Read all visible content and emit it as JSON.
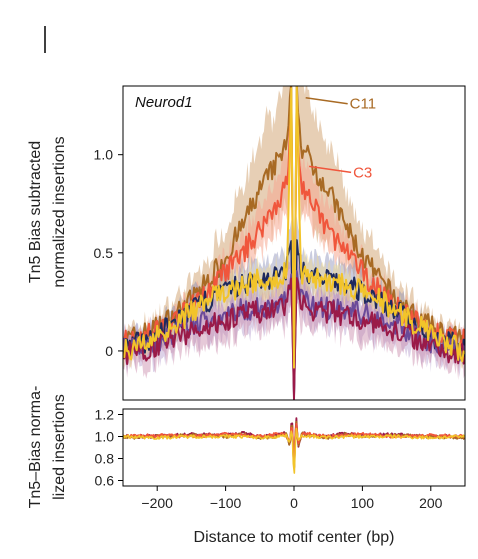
{
  "chart_data": [
    {
      "type": "line",
      "title": "Neurod1",
      "ylabel_line1": "Tn5 Bias subtracted",
      "ylabel_line2": "normalized insertions",
      "xlim": [
        -250,
        250
      ],
      "ylim": [
        -0.25,
        1.35
      ],
      "yticks": [
        0,
        0.5,
        1.0
      ],
      "ytick_labels": [
        "0",
        "0.5",
        "1.0"
      ],
      "annotations": [
        {
          "text": "C11",
          "x": 20,
          "y": 1.27,
          "color": "#a86a24"
        },
        {
          "text": "C3",
          "x": 25,
          "y": 0.92,
          "color": "#f0563c"
        }
      ],
      "series": [
        {
          "name": "C11",
          "color": "#a86a24",
          "band_color": "#d4a878",
          "x": [
            -250,
            -225,
            -200,
            -175,
            -150,
            -125,
            -100,
            -75,
            -50,
            -25,
            -10,
            -4,
            0,
            4,
            10,
            25,
            50,
            75,
            100,
            125,
            150,
            175,
            200,
            225,
            250
          ],
          "y": [
            0.05,
            0.08,
            0.12,
            0.18,
            0.26,
            0.36,
            0.48,
            0.64,
            0.82,
            0.96,
            1.05,
            1.35,
            -0.05,
            1.35,
            1.05,
            0.96,
            0.82,
            0.64,
            0.48,
            0.36,
            0.26,
            0.18,
            0.12,
            0.08,
            0.05
          ],
          "band": [
            0.04,
            0.05,
            0.06,
            0.08,
            0.1,
            0.12,
            0.15,
            0.2,
            0.25,
            0.3,
            0.34,
            0.3,
            0.1,
            0.3,
            0.34,
            0.3,
            0.25,
            0.2,
            0.15,
            0.12,
            0.1,
            0.08,
            0.06,
            0.05,
            0.04
          ]
        },
        {
          "name": "C3",
          "color": "#f0563c",
          "band_color": "#f5a890",
          "x": [
            -250,
            -225,
            -200,
            -175,
            -150,
            -125,
            -100,
            -75,
            -50,
            -25,
            -10,
            -4,
            0,
            4,
            10,
            25,
            50,
            75,
            100,
            125,
            150,
            175,
            200,
            225,
            250
          ],
          "y": [
            0.05,
            0.07,
            0.1,
            0.15,
            0.22,
            0.3,
            0.4,
            0.5,
            0.62,
            0.75,
            0.86,
            1.2,
            -0.05,
            1.2,
            0.86,
            0.75,
            0.62,
            0.5,
            0.4,
            0.3,
            0.22,
            0.15,
            0.1,
            0.07,
            0.05
          ],
          "band": [
            0.03,
            0.03,
            0.04,
            0.05,
            0.06,
            0.07,
            0.08,
            0.1,
            0.12,
            0.14,
            0.16,
            0.15,
            0.08,
            0.15,
            0.16,
            0.14,
            0.12,
            0.1,
            0.08,
            0.07,
            0.06,
            0.05,
            0.04,
            0.03,
            0.03
          ]
        },
        {
          "color": "#1e2a5e",
          "band_color": "#8a8fb8",
          "x": [
            -250,
            -225,
            -200,
            -175,
            -150,
            -125,
            -100,
            -75,
            -50,
            -25,
            -10,
            -4,
            0,
            4,
            10,
            25,
            50,
            75,
            100,
            125,
            150,
            175,
            200,
            225,
            250
          ],
          "y": [
            0.02,
            0.04,
            0.08,
            0.14,
            0.2,
            0.26,
            0.3,
            0.34,
            0.36,
            0.38,
            0.42,
            0.55,
            -0.2,
            0.55,
            0.42,
            0.38,
            0.36,
            0.34,
            0.3,
            0.26,
            0.2,
            0.14,
            0.08,
            0.04,
            0.02
          ],
          "band": [
            0.05,
            0.05,
            0.06,
            0.07,
            0.08,
            0.08,
            0.09,
            0.1,
            0.1,
            0.1,
            0.12,
            0.12,
            0.06,
            0.12,
            0.12,
            0.1,
            0.1,
            0.1,
            0.09,
            0.08,
            0.08,
            0.07,
            0.06,
            0.05,
            0.05
          ]
        },
        {
          "color": "#6a4a9a",
          "band_color": "#b49ccc",
          "x": [
            -250,
            -225,
            -200,
            -175,
            -150,
            -125,
            -100,
            -75,
            -50,
            -25,
            -10,
            -4,
            0,
            4,
            10,
            25,
            50,
            75,
            100,
            125,
            150,
            175,
            200,
            225,
            250
          ],
          "y": [
            0.0,
            0.02,
            0.05,
            0.09,
            0.13,
            0.16,
            0.19,
            0.21,
            0.22,
            0.23,
            0.26,
            0.4,
            -0.22,
            0.4,
            0.26,
            0.23,
            0.22,
            0.21,
            0.19,
            0.16,
            0.13,
            0.09,
            0.05,
            0.02,
            0.0
          ],
          "band": [
            0.08,
            0.08,
            0.09,
            0.09,
            0.1,
            0.1,
            0.1,
            0.1,
            0.1,
            0.1,
            0.12,
            0.12,
            0.06,
            0.12,
            0.12,
            0.1,
            0.1,
            0.1,
            0.1,
            0.1,
            0.1,
            0.09,
            0.09,
            0.08,
            0.08
          ]
        },
        {
          "color": "#9a1a48",
          "band_color": "#c888a8",
          "x": [
            -250,
            -225,
            -200,
            -175,
            -150,
            -125,
            -100,
            -75,
            -50,
            -25,
            -10,
            -4,
            0,
            4,
            10,
            25,
            50,
            75,
            100,
            125,
            150,
            175,
            200,
            225,
            250
          ],
          "y": [
            -0.02,
            0.0,
            0.03,
            0.07,
            0.1,
            0.13,
            0.16,
            0.18,
            0.2,
            0.21,
            0.24,
            0.38,
            -0.24,
            0.38,
            0.24,
            0.21,
            0.2,
            0.18,
            0.16,
            0.13,
            0.1,
            0.07,
            0.03,
            0.0,
            -0.02
          ],
          "band": [
            0.08,
            0.08,
            0.08,
            0.09,
            0.09,
            0.1,
            0.1,
            0.1,
            0.1,
            0.1,
            0.12,
            0.12,
            0.06,
            0.12,
            0.12,
            0.1,
            0.1,
            0.1,
            0.1,
            0.1,
            0.09,
            0.09,
            0.08,
            0.08,
            0.08
          ]
        },
        {
          "color": "#f2c42a",
          "band_color": "#f5dc8a",
          "x": [
            -250,
            -225,
            -200,
            -175,
            -150,
            -125,
            -100,
            -75,
            -50,
            -25,
            -10,
            -4,
            0,
            4,
            10,
            25,
            50,
            75,
            100,
            125,
            150,
            175,
            200,
            225,
            250
          ],
          "y": [
            0.0,
            0.03,
            0.08,
            0.14,
            0.2,
            0.26,
            0.3,
            0.33,
            0.36,
            0.38,
            0.4,
            1.35,
            -0.1,
            1.35,
            0.4,
            0.38,
            0.36,
            0.33,
            0.3,
            0.26,
            0.2,
            0.14,
            0.08,
            0.03,
            0.0
          ],
          "band": [
            0.04,
            0.04,
            0.05,
            0.05,
            0.06,
            0.06,
            0.07,
            0.07,
            0.08,
            0.08,
            0.09,
            0.1,
            0.06,
            0.1,
            0.09,
            0.08,
            0.08,
            0.07,
            0.07,
            0.06,
            0.06,
            0.05,
            0.05,
            0.04,
            0.04
          ]
        }
      ]
    },
    {
      "type": "line",
      "xlabel": "Distance to motif center (bp)",
      "ylabel_line1": "Tn5–Bias norma-",
      "ylabel_line2": "lized insertions",
      "xlim": [
        -250,
        250
      ],
      "ylim": [
        0.55,
        1.25
      ],
      "xticks": [
        -200,
        -100,
        0,
        100,
        200
      ],
      "xtick_labels": [
        "−200",
        "−100",
        "0",
        "100",
        "200"
      ],
      "yticks": [
        0.6,
        0.8,
        1.0,
        1.2
      ],
      "ytick_labels": [
        "0.6",
        "0.8",
        "1.0",
        "1.2"
      ],
      "series": [
        {
          "color": "#9a1a48",
          "x": [
            -250,
            -200,
            -150,
            -100,
            -75,
            -50,
            -25,
            -12,
            -6,
            -3,
            0,
            3,
            6,
            12,
            25,
            50,
            75,
            100,
            150,
            200,
            250
          ],
          "y": [
            1.0,
            1.0,
            1.02,
            1.01,
            1.03,
            1.0,
            1.01,
            1.04,
            0.9,
            1.22,
            0.62,
            1.22,
            0.9,
            1.04,
            1.01,
            1.0,
            1.03,
            1.01,
            1.02,
            1.0,
            1.0
          ]
        },
        {
          "color": "#a86a24",
          "x": [
            -250,
            -200,
            -150,
            -100,
            -75,
            -50,
            -25,
            -12,
            -6,
            -3,
            0,
            3,
            6,
            12,
            25,
            50,
            75,
            100,
            150,
            200,
            250
          ],
          "y": [
            0.99,
            1.0,
            1.01,
            1.0,
            1.02,
            0.99,
            1.0,
            1.03,
            0.92,
            1.18,
            0.66,
            1.18,
            0.92,
            1.03,
            1.0,
            0.99,
            1.02,
            1.0,
            1.01,
            1.0,
            0.99
          ]
        },
        {
          "color": "#f0563c",
          "x": [
            -250,
            -200,
            -150,
            -100,
            -75,
            -50,
            -25,
            -12,
            -6,
            -3,
            0,
            3,
            6,
            12,
            25,
            50,
            75,
            100,
            150,
            200,
            250
          ],
          "y": [
            1.0,
            1.01,
            1.0,
            1.02,
            1.01,
            1.0,
            1.02,
            1.02,
            0.94,
            1.15,
            0.7,
            1.15,
            0.94,
            1.02,
            1.02,
            1.0,
            1.01,
            1.02,
            1.0,
            1.01,
            1.0
          ]
        },
        {
          "color": "#f2c42a",
          "x": [
            -250,
            -200,
            -150,
            -100,
            -75,
            -50,
            -25,
            -12,
            -6,
            -3,
            0,
            3,
            6,
            12,
            25,
            50,
            75,
            100,
            150,
            200,
            250
          ],
          "y": [
            1.0,
            0.99,
            1.0,
            1.0,
            1.0,
            0.99,
            1.0,
            1.01,
            0.95,
            1.1,
            0.58,
            1.1,
            0.95,
            1.01,
            1.0,
            0.99,
            1.0,
            1.0,
            1.0,
            0.99,
            1.0
          ]
        }
      ]
    }
  ]
}
